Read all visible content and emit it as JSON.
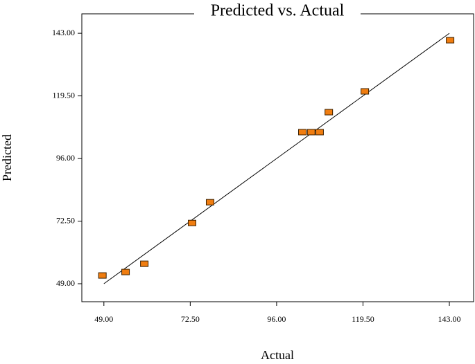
{
  "chart_data": {
    "type": "scatter",
    "title": "Predicted vs. Actual",
    "x_label": "Actual",
    "y_label": "Predicted",
    "x": [
      48.6,
      54.9,
      60.0,
      73.0,
      77.9,
      103.0,
      105.4,
      107.7,
      110.2,
      120.0,
      143.2
    ],
    "values": [
      52.1,
      53.4,
      56.5,
      71.8,
      79.6,
      105.9,
      105.9,
      105.9,
      113.4,
      121.2,
      140.4
    ],
    "color": "#f07d10",
    "xlim": [
      43,
      149.6
    ],
    "ylim": [
      42.25,
      150.3
    ],
    "xticks": [
      {
        "value": 49,
        "label": "49.00"
      },
      {
        "value": 72.5,
        "label": "72.50"
      },
      {
        "value": 96,
        "label": "96.00"
      },
      {
        "value": 119.5,
        "label": "119.50"
      },
      {
        "value": 143,
        "label": "143.00"
      }
    ],
    "yticks": [
      {
        "value": 49,
        "label": "49.00"
      },
      {
        "value": 72.5,
        "label": "72.50"
      },
      {
        "value": 96,
        "label": "96.00"
      },
      {
        "value": 119.5,
        "label": "119.50"
      },
      {
        "value": 143,
        "label": "143.00"
      }
    ]
  }
}
